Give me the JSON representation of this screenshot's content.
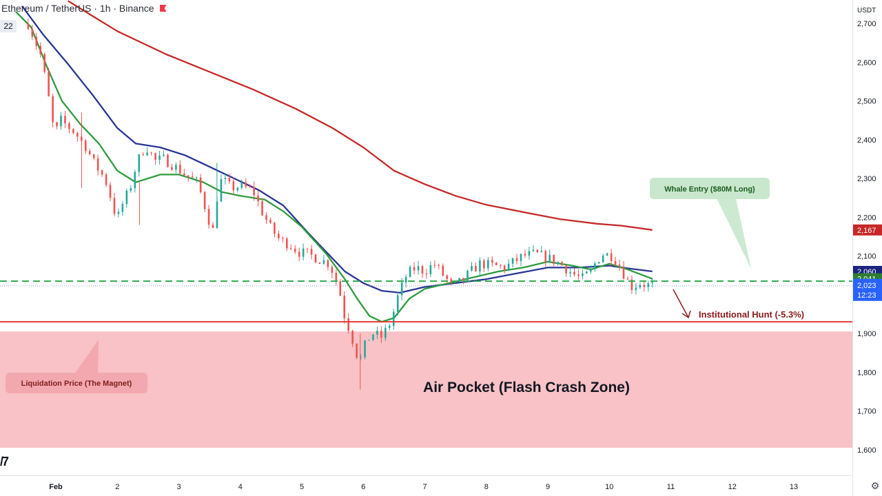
{
  "header": {
    "symbol": "Ethereum / TetherUS · 1h · Binance"
  },
  "bar_count_badge": "22",
  "currency_label": "USDT",
  "colors": {
    "up": "#26a69a",
    "down": "#ef5350",
    "ma200": "#c62828",
    "ma50": "#283593",
    "ma20": "#2e9b3e",
    "whale_line": "#2fa84f",
    "liq_line": "#e53935",
    "zone": "#f8c2c6"
  },
  "annotations": {
    "whale": "Whale Entry ($80M Long)",
    "hunt": "Institutional Hunt (-5.3%)",
    "liquidation": "Liquidation Price (The Magnet)",
    "zone": "Air Pocket (Flash Crash Zone)"
  },
  "price_tags": {
    "ma200": "2,167",
    "ma50": "2,060",
    "ma20": "2,041",
    "last": "2,023",
    "countdown": "12:23"
  },
  "chart_data": {
    "type": "candlestick",
    "title": "Ethereum / TetherUS · 1h · Binance",
    "ylabel": "USDT",
    "ylim": [
      1545,
      2745
    ],
    "x_ticks": [
      "Feb",
      "2",
      "3",
      "4",
      "5",
      "6",
      "7",
      "8",
      "9",
      "10",
      "11",
      "12",
      "13"
    ],
    "y_ticks": [
      "2,700",
      "2,600",
      "2,500",
      "2,400",
      "2,300",
      "2,200",
      "2,100",
      "1,900",
      "1,800",
      "1,700",
      "1,600"
    ],
    "y_tick_values": [
      2700,
      2600,
      2500,
      2400,
      2300,
      2200,
      2100,
      1900,
      1800,
      1700,
      1600
    ],
    "price_series_day": [
      [
        0.55,
        2700
      ],
      [
        0.6,
        2680
      ],
      [
        0.75,
        2620
      ],
      [
        0.85,
        2540
      ],
      [
        0.95,
        2440
      ],
      [
        1.0,
        2410
      ],
      [
        1.05,
        2455
      ],
      [
        1.15,
        2440
      ],
      [
        1.3,
        2420
      ],
      [
        1.5,
        2380
      ],
      [
        1.6,
        2345
      ],
      [
        1.75,
        2310
      ],
      [
        1.85,
        2280
      ],
      [
        1.92,
        2230
      ],
      [
        2.0,
        2195
      ],
      [
        2.1,
        2240
      ],
      [
        2.2,
        2270
      ],
      [
        2.3,
        2330
      ],
      [
        2.4,
        2370
      ],
      [
        2.5,
        2380
      ],
      [
        2.6,
        2345
      ],
      [
        2.75,
        2350
      ],
      [
        2.9,
        2335
      ],
      [
        3.1,
        2310
      ],
      [
        3.3,
        2290
      ],
      [
        3.4,
        2240
      ],
      [
        3.55,
        2160
      ],
      [
        3.62,
        2250
      ],
      [
        3.7,
        2300
      ],
      [
        3.85,
        2275
      ],
      [
        4.0,
        2280
      ],
      [
        4.2,
        2270
      ],
      [
        4.35,
        2215
      ],
      [
        4.5,
        2170
      ],
      [
        4.65,
        2140
      ],
      [
        4.8,
        2130
      ],
      [
        4.95,
        2110
      ],
      [
        5.1,
        2105
      ],
      [
        5.3,
        2090
      ],
      [
        5.45,
        2080
      ],
      [
        5.6,
        2020
      ],
      [
        5.7,
        1940
      ],
      [
        5.8,
        1900
      ],
      [
        5.88,
        1850
      ],
      [
        5.95,
        1830
      ],
      [
        6.05,
        1880
      ],
      [
        6.15,
        1900
      ],
      [
        6.3,
        1890
      ],
      [
        6.45,
        1930
      ],
      [
        6.55,
        1990
      ],
      [
        6.7,
        2050
      ],
      [
        6.85,
        2070
      ],
      [
        7.0,
        2060
      ],
      [
        7.15,
        2080
      ],
      [
        7.3,
        2050
      ],
      [
        7.45,
        2020
      ],
      [
        7.6,
        2035
      ],
      [
        7.75,
        2060
      ],
      [
        7.9,
        2080
      ],
      [
        8.1,
        2075
      ],
      [
        8.3,
        2070
      ],
      [
        8.45,
        2085
      ],
      [
        8.6,
        2100
      ],
      [
        8.8,
        2105
      ],
      [
        9.0,
        2095
      ],
      [
        9.2,
        2080
      ],
      [
        9.4,
        2055
      ],
      [
        9.55,
        2040
      ],
      [
        9.7,
        2060
      ],
      [
        9.8,
        2090
      ],
      [
        9.9,
        2105
      ],
      [
        10.05,
        2100
      ],
      [
        10.15,
        2080
      ],
      [
        10.25,
        2050
      ],
      [
        10.35,
        2020
      ],
      [
        10.5,
        2030
      ],
      [
        10.6,
        2025
      ],
      [
        10.7,
        2023
      ]
    ],
    "series": [
      {
        "name": "",
        "points_day": [
          [
            1.2,
            2758
          ],
          [
            2.0,
            2680
          ],
          [
            2.8,
            2620
          ],
          [
            3.5,
            2575
          ],
          [
            4.2,
            2530
          ],
          [
            4.9,
            2480
          ],
          [
            5.5,
            2430
          ],
          [
            6.0,
            2380
          ],
          [
            6.5,
            2320
          ],
          [
            7.0,
            2285
          ],
          [
            7.5,
            2255
          ],
          [
            8.0,
            2232
          ],
          [
            8.6,
            2213
          ],
          [
            9.2,
            2195
          ],
          [
            9.8,
            2183
          ],
          [
            10.2,
            2178
          ],
          [
            10.7,
            2167
          ]
        ]
      },
      {
        "name": "",
        "points_day": [
          [
            0.45,
            2745
          ],
          [
            0.8,
            2670
          ],
          [
            1.2,
            2595
          ],
          [
            1.6,
            2515
          ],
          [
            2.0,
            2430
          ],
          [
            2.3,
            2390
          ],
          [
            2.7,
            2380
          ],
          [
            3.1,
            2360
          ],
          [
            3.5,
            2330
          ],
          [
            3.9,
            2300
          ],
          [
            4.3,
            2270
          ],
          [
            4.7,
            2230
          ],
          [
            5.1,
            2160
          ],
          [
            5.4,
            2110
          ],
          [
            5.7,
            2060
          ],
          [
            6.0,
            2030
          ],
          [
            6.3,
            2010
          ],
          [
            6.6,
            2005
          ],
          [
            7.0,
            2020
          ],
          [
            7.5,
            2030
          ],
          [
            8.0,
            2040
          ],
          [
            8.5,
            2055
          ],
          [
            9.0,
            2070
          ],
          [
            9.5,
            2070
          ],
          [
            10.0,
            2075
          ],
          [
            10.3,
            2068
          ],
          [
            10.7,
            2060
          ]
        ]
      },
      {
        "name": "",
        "points_day": [
          [
            0.35,
            2730
          ],
          [
            0.6,
            2690
          ],
          [
            0.85,
            2590
          ],
          [
            1.1,
            2500
          ],
          [
            1.4,
            2440
          ],
          [
            1.7,
            2390
          ],
          [
            2.0,
            2320
          ],
          [
            2.3,
            2290
          ],
          [
            2.7,
            2310
          ],
          [
            3.0,
            2310
          ],
          [
            3.4,
            2290
          ],
          [
            3.7,
            2265
          ],
          [
            4.0,
            2255
          ],
          [
            4.4,
            2245
          ],
          [
            4.7,
            2215
          ],
          [
            5.0,
            2175
          ],
          [
            5.4,
            2105
          ],
          [
            5.7,
            2040
          ],
          [
            5.9,
            1990
          ],
          [
            6.1,
            1945
          ],
          [
            6.3,
            1930
          ],
          [
            6.5,
            1940
          ],
          [
            6.75,
            1990
          ],
          [
            7.0,
            2015
          ],
          [
            7.4,
            2030
          ],
          [
            7.8,
            2045
          ],
          [
            8.2,
            2060
          ],
          [
            8.6,
            2070
          ],
          [
            9.0,
            2085
          ],
          [
            9.4,
            2075
          ],
          [
            9.7,
            2065
          ],
          [
            10.0,
            2080
          ],
          [
            10.3,
            2065
          ],
          [
            10.7,
            2041
          ]
        ]
      }
    ],
    "levels": {
      "whale_entry": 2035,
      "liquidation": 1930,
      "zone_top": 1905,
      "zone_bottom": 1605
    }
  }
}
